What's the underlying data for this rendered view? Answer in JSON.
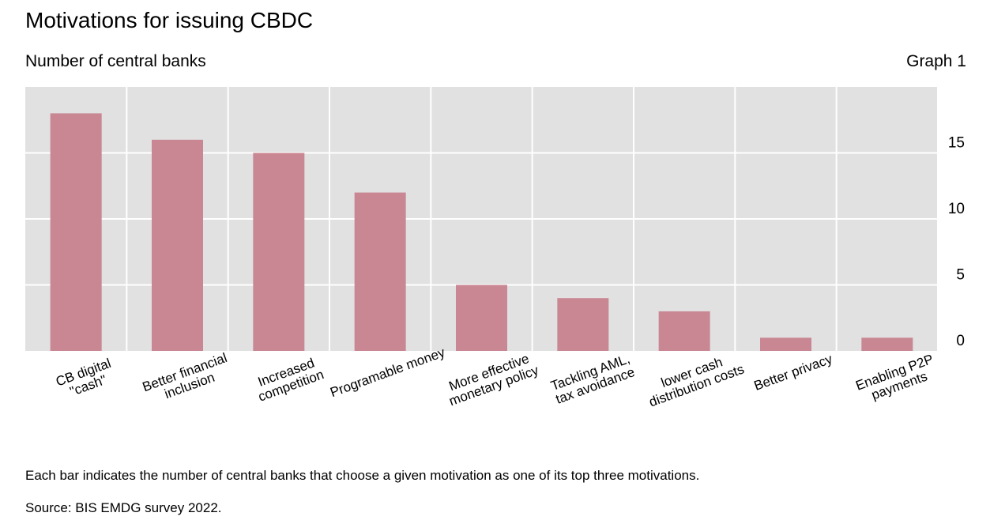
{
  "header": {
    "title": "Motivations for issuing CBDC",
    "subtitle": "Number of central banks",
    "graph_label": "Graph 1"
  },
  "footer": {
    "note": "Each bar indicates the number of central banks that choose a given motivation as one of its top three motivations.",
    "source": "Source: BIS EMDG survey 2022."
  },
  "colors": {
    "bar": "#c98793",
    "plot_bg": "#e1e1e1",
    "grid": "#ffffff"
  },
  "chart_data": {
    "type": "bar",
    "title": "Motivations for issuing CBDC",
    "subtitle": "Number of central banks",
    "categories": [
      [
        "CB digital",
        "\"cash\""
      ],
      [
        "Better financial",
        "inclusion"
      ],
      [
        "Increased",
        "competition"
      ],
      [
        "Programable money"
      ],
      [
        "More effective",
        "monetary policy"
      ],
      [
        "Tackling AML,",
        "tax avoidance"
      ],
      [
        "lower cash",
        "distribution costs"
      ],
      [
        "Better privacy"
      ],
      [
        "Enabling P2P",
        "payments"
      ]
    ],
    "values": [
      18,
      16,
      15,
      12,
      5,
      4,
      3,
      1,
      1
    ],
    "ylim": [
      0,
      20
    ],
    "yticks": [
      0,
      5,
      10,
      15
    ],
    "y_axis_side": "right",
    "grid": true,
    "legend": "none"
  }
}
